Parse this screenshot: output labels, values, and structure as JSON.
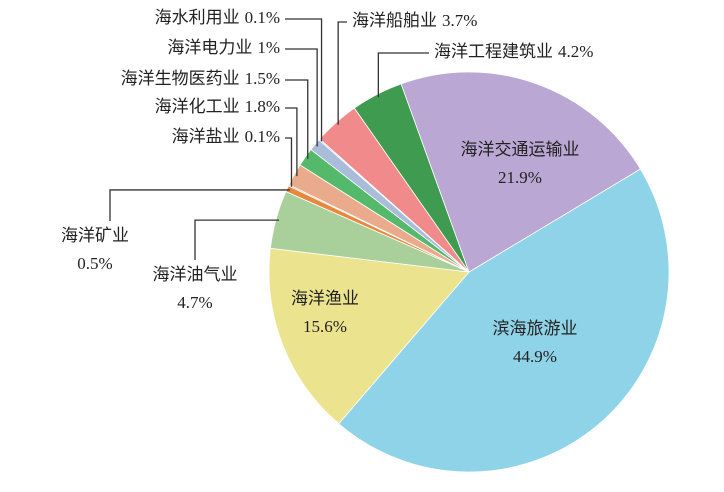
{
  "chart_data": {
    "type": "pie",
    "categories": [
      "滨海旅游业",
      "海洋渔业",
      "海洋油气业",
      "海洋矿业",
      "海洋盐业",
      "海洋化工业",
      "海洋生物医药业",
      "海洋电力业",
      "海水利用业",
      "海洋船舶业",
      "海洋工程建筑业",
      "海洋交通运输业"
    ],
    "values": [
      44.9,
      15.6,
      4.7,
      0.5,
      0.1,
      1.8,
      1.5,
      1,
      0.1,
      3.7,
      4.2,
      21.9
    ],
    "value_labels": [
      "44.9%",
      "15.6%",
      "4.7%",
      "0.5%",
      "0.1%",
      "1.8%",
      "1.5%",
      "1%",
      "0.1%",
      "3.7%",
      "4.2%",
      "21.9%"
    ],
    "colors": [
      "#8fd3e8",
      "#ece38f",
      "#a9d09b",
      "#e8873e",
      "#d9a77a",
      "#e9ab8c",
      "#55b96b",
      "#a9bcd9",
      "#8fb0d0",
      "#f18b8b",
      "#3f9b50",
      "#baa7d3"
    ]
  }
}
